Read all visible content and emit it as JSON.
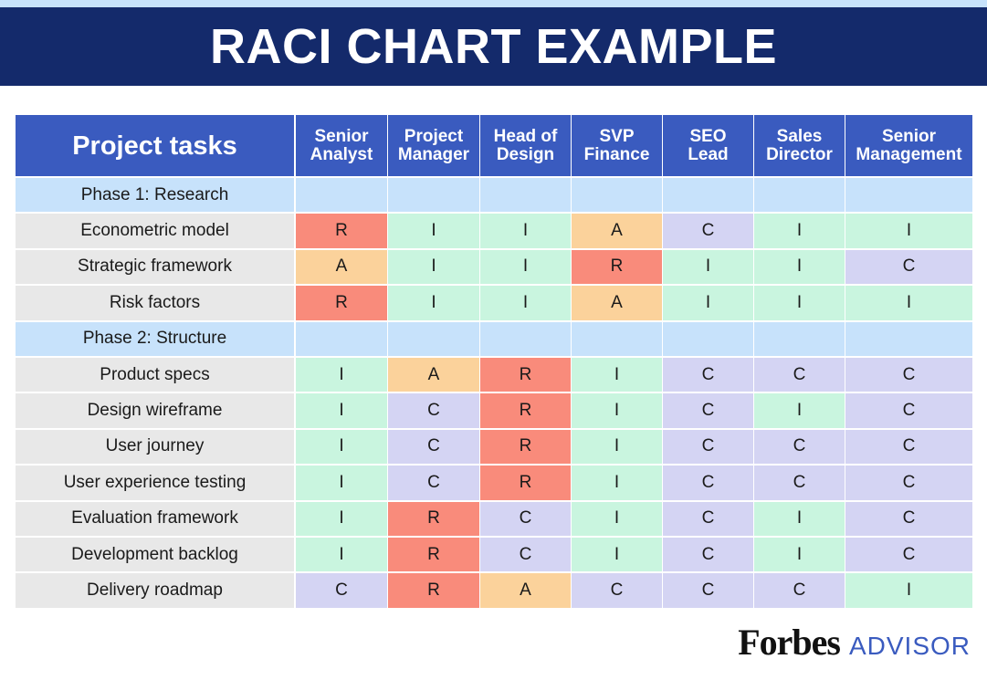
{
  "header": {
    "title": "RACI CHART EXAMPLE"
  },
  "table": {
    "first_header": "Project tasks",
    "columns": [
      "Senior Analyst",
      "Project Manager",
      "Head of Design",
      "SVP Finance",
      "SEO Lead",
      "Sales Director",
      "Senior Management"
    ],
    "cell_colors": {
      "R": "#f98b7b",
      "A": "#fbd29b",
      "I": "#c9f5df",
      "C": "#d4d4f3"
    },
    "rows": [
      {
        "label": "Phase 1: Research",
        "phase": true
      },
      {
        "label": "Econometric model",
        "cells": [
          "R",
          "I",
          "I",
          "A",
          "C",
          "I",
          "I"
        ]
      },
      {
        "label": "Strategic framework",
        "cells": [
          "A",
          "I",
          "I",
          "R",
          "I",
          "I",
          "C"
        ]
      },
      {
        "label": "Risk factors",
        "cells": [
          "R",
          "I",
          "I",
          "A",
          "I",
          "I",
          "I"
        ]
      },
      {
        "label": "Phase 2: Structure",
        "phase": true
      },
      {
        "label": "Product specs",
        "cells": [
          "I",
          "A",
          "R",
          "I",
          "C",
          "C",
          "C"
        ]
      },
      {
        "label": "Design wireframe",
        "cells": [
          "I",
          "C",
          "R",
          "I",
          "C",
          "I",
          "C"
        ]
      },
      {
        "label": "User journey",
        "cells": [
          "I",
          "C",
          "R",
          "I",
          "C",
          "C",
          "C"
        ]
      },
      {
        "label": "User experience testing",
        "cells": [
          "I",
          "C",
          "R",
          "I",
          "C",
          "C",
          "C"
        ]
      },
      {
        "label": "Evaluation framework",
        "cells": [
          "I",
          "R",
          "C",
          "I",
          "C",
          "I",
          "C"
        ]
      },
      {
        "label": "Development backlog",
        "cells": [
          "I",
          "R",
          "C",
          "I",
          "C",
          "I",
          "C"
        ]
      },
      {
        "label": "Delivery roadmap",
        "cells": [
          "C",
          "R",
          "A",
          "C",
          "C",
          "C",
          "I"
        ]
      }
    ]
  },
  "footer": {
    "brand": "Forbes",
    "sub": "ADVISOR"
  }
}
